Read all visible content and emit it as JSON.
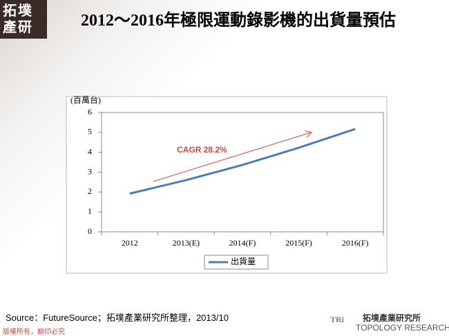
{
  "logo": "拓墣產研",
  "chart_data": {
    "type": "line",
    "title": "2012～2016年極限運動錄影機的出貨量預估",
    "y_label": "(百萬台)",
    "categories": [
      "2012",
      "2013(E)",
      "2014(F)",
      "2015(F)",
      "2016(F)"
    ],
    "series": [
      {
        "name": "出貨量",
        "color": "#4a7ebb",
        "values": [
          1.92,
          2.6,
          3.36,
          4.23,
          5.17
        ]
      }
    ],
    "ylim": [
      0,
      6
    ],
    "yticks": [
      0,
      1,
      2,
      3,
      4,
      5,
      6
    ],
    "annotation": "CAGR 28.2%",
    "legend": "bottom"
  },
  "source": "Source：FutureSource；拓墣產業研究所整理，2013/10",
  "copyright": "版權所有，翻印必究",
  "footer_logo": {
    "mark": "TRi",
    "name": "拓墣產業研究所",
    "english": "TOPOLOGY RESEARCH INSTITUTE"
  }
}
